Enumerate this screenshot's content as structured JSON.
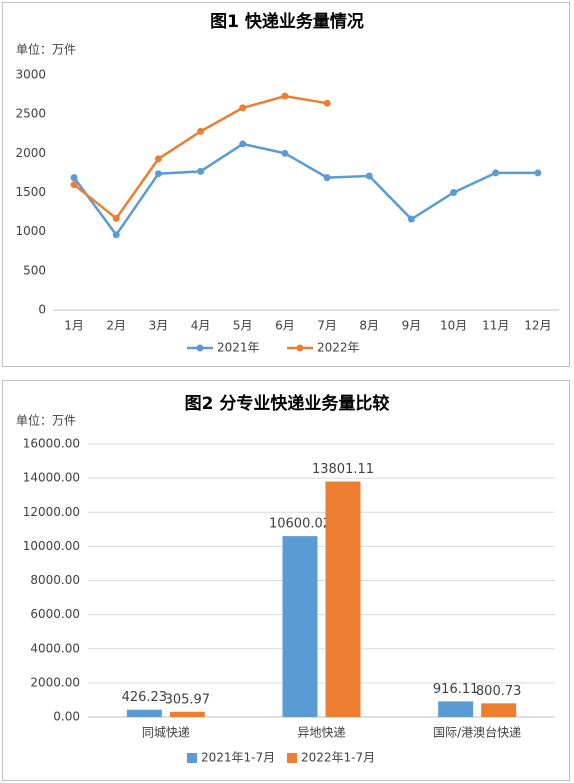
{
  "chart_data": [
    {
      "type": "line",
      "title": "图1  快递业务量情况",
      "unit_label": "单位：万件",
      "categories": [
        "1月",
        "2月",
        "3月",
        "4月",
        "5月",
        "6月",
        "7月",
        "8月",
        "9月",
        "10月",
        "11月",
        "12月"
      ],
      "series": [
        {
          "name": "2021年",
          "color": "#5b9bd5",
          "values": [
            1690,
            960,
            1740,
            1770,
            2120,
            2000,
            1690,
            1710,
            1160,
            1500,
            1750,
            1750
          ]
        },
        {
          "name": "2022年",
          "color": "#ed7d31",
          "values": [
            1600,
            1170,
            1930,
            2280,
            2580,
            2730,
            2640,
            null,
            null,
            null,
            null,
            null
          ]
        }
      ],
      "ylim": [
        0,
        3000
      ],
      "yticks": [
        0,
        500,
        1000,
        1500,
        2000,
        2500,
        3000
      ],
      "grid": false,
      "legend": "bottom"
    },
    {
      "type": "bar",
      "title": "图2  分专业快递业务量比较",
      "unit_label": "单位：万件",
      "categories": [
        "同城快递",
        "异地快递",
        "国际/港澳台快递"
      ],
      "series": [
        {
          "name": "2021年1-7月",
          "color": "#5b9bd5",
          "values": [
            426.23,
            10600.02,
            916.11
          ]
        },
        {
          "name": "2022年1-7月",
          "color": "#ed7d31",
          "values": [
            305.97,
            13801.11,
            800.73
          ]
        }
      ],
      "ylim": [
        0,
        16000
      ],
      "yticks": [
        {
          "value": 0,
          "label": "0.00"
        },
        {
          "value": 2000,
          "label": "2000.00"
        },
        {
          "value": 4000,
          "label": "4000.00"
        },
        {
          "value": 6000,
          "label": "6000.00"
        },
        {
          "value": 8000,
          "label": "8000.00"
        },
        {
          "value": 10000,
          "label": "10000.00"
        },
        {
          "value": 12000,
          "label": "12000.00"
        },
        {
          "value": 14000,
          "label": "14000.00"
        },
        {
          "value": 16000,
          "label": "16000.00"
        }
      ],
      "grid": true,
      "legend": "bottom"
    }
  ]
}
